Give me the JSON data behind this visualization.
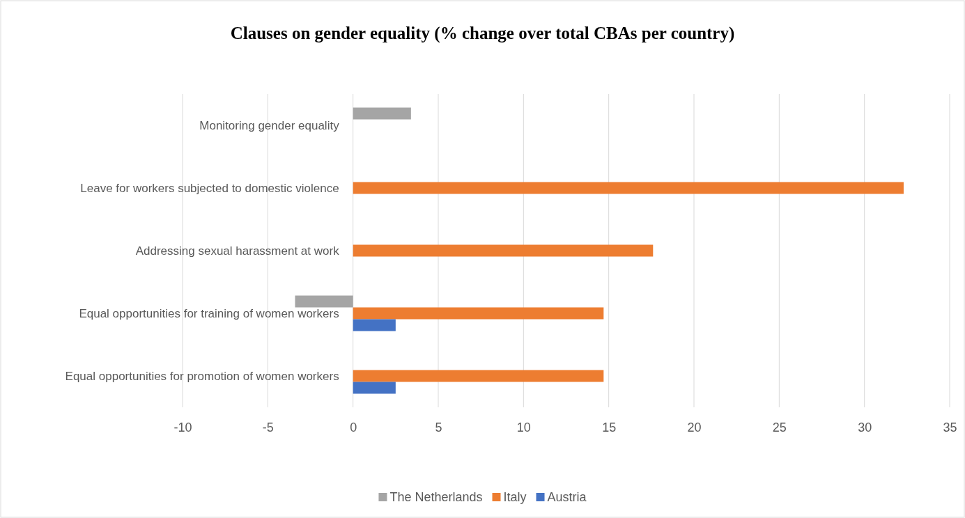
{
  "chart_data": {
    "type": "bar",
    "orientation": "horizontal",
    "title": "Clauses on gender equality (% change over total CBAs per country)",
    "categories": [
      "Monitoring gender equality",
      "Leave for workers subjected to domestic violence",
      "Addressing sexual harassment at work",
      "Equal opportunities for training of women workers",
      "Equal opportunities for promotion of women workers"
    ],
    "series": [
      {
        "name": "The Netherlands",
        "color": "#a5a5a5",
        "values": [
          3.4,
          null,
          null,
          -3.4,
          null
        ]
      },
      {
        "name": "Italy",
        "color": "#ed7d31",
        "values": [
          null,
          32.3,
          17.6,
          14.7,
          14.7
        ]
      },
      {
        "name": "Austria",
        "color": "#4472c4",
        "values": [
          null,
          null,
          null,
          2.5,
          2.5
        ]
      }
    ],
    "xlim": [
      -10,
      35
    ],
    "xticks": [
      -10,
      -5,
      0,
      5,
      10,
      15,
      20,
      25,
      30,
      35
    ],
    "grid": "x",
    "legend": "bottom"
  }
}
